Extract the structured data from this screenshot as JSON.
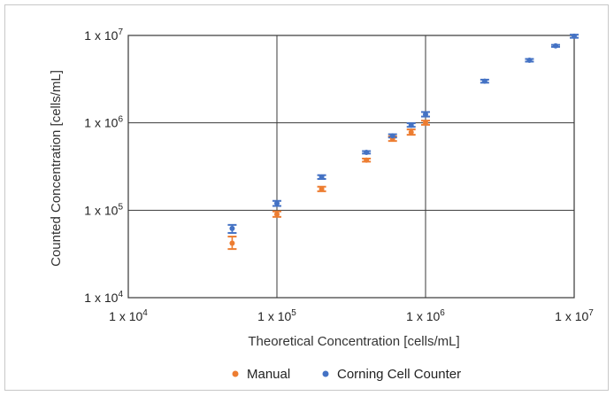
{
  "chart_data": {
    "type": "scatter",
    "xlabel": "Theoretical Concentration [cells/mL]",
    "ylabel": "Counted Concentration [cells/mL]",
    "x_scale": "log",
    "y_scale": "log",
    "xlim": [
      10000,
      10000000
    ],
    "ylim": [
      10000,
      10000000
    ],
    "grid": true,
    "legend_position": "bottom",
    "x_tick_labels": [
      {
        "mantissa": "1 x 10",
        "exp": "4"
      },
      {
        "mantissa": "1 x 10",
        "exp": "5"
      },
      {
        "mantissa": "1 x 10",
        "exp": "6"
      },
      {
        "mantissa": "1 x 10",
        "exp": "7"
      }
    ],
    "y_tick_labels": [
      {
        "mantissa": "1 x 10",
        "exp": "4"
      },
      {
        "mantissa": "1 x 10",
        "exp": "5"
      },
      {
        "mantissa": "1 x 10",
        "exp": "6"
      },
      {
        "mantissa": "1 x 10",
        "exp": "7"
      }
    ],
    "series": [
      {
        "name": "Manual",
        "color": "#ED7D31",
        "points": [
          {
            "x": 50000,
            "y": 42000,
            "ylo": 36000,
            "yhi": 50000
          },
          {
            "x": 100000,
            "y": 90000,
            "ylo": 84000,
            "yhi": 97000
          },
          {
            "x": 200000,
            "y": 175000,
            "ylo": 165000,
            "yhi": 186000
          },
          {
            "x": 400000,
            "y": 375000,
            "ylo": 360000,
            "yhi": 390000
          },
          {
            "x": 600000,
            "y": 660000,
            "ylo": 620000,
            "yhi": 700000
          },
          {
            "x": 800000,
            "y": 780000,
            "ylo": 730000,
            "yhi": 840000
          },
          {
            "x": 1000000,
            "y": 1000000,
            "ylo": 950000,
            "yhi": 1060000
          }
        ]
      },
      {
        "name": "Corning Cell Counter",
        "color": "#4472C4",
        "points": [
          {
            "x": 50000,
            "y": 62000,
            "ylo": 55000,
            "yhi": 68000
          },
          {
            "x": 100000,
            "y": 120000,
            "ylo": 112000,
            "yhi": 128000
          },
          {
            "x": 200000,
            "y": 240000,
            "ylo": 228000,
            "yhi": 252000
          },
          {
            "x": 400000,
            "y": 460000,
            "ylo": 445000,
            "yhi": 475000
          },
          {
            "x": 600000,
            "y": 710000,
            "ylo": 680000,
            "yhi": 740000
          },
          {
            "x": 800000,
            "y": 940000,
            "ylo": 900000,
            "yhi": 990000
          },
          {
            "x": 1000000,
            "y": 1250000,
            "ylo": 1180000,
            "yhi": 1330000
          },
          {
            "x": 2500000,
            "y": 3000000,
            "ylo": 2880000,
            "yhi": 3120000
          },
          {
            "x": 5000000,
            "y": 5200000,
            "ylo": 5020000,
            "yhi": 5380000
          },
          {
            "x": 7500000,
            "y": 7600000,
            "ylo": 7400000,
            "yhi": 7800000
          },
          {
            "x": 10000000,
            "y": 9800000,
            "ylo": 9400000,
            "yhi": 10200000
          }
        ]
      }
    ]
  }
}
